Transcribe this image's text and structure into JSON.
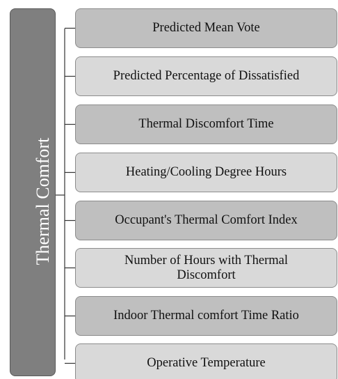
{
  "title": "Thermal Comfort",
  "items": [
    "Predicted Mean Vote",
    "Predicted Percentage of Dissatisfied",
    "Thermal Discomfort Time",
    "Heating/Cooling Degree Hours",
    "Occupant's Thermal Comfort Index",
    "Number of Hours with Thermal Discomfort",
    "Indoor Thermal comfort Time Ratio",
    "Operative Temperature"
  ]
}
